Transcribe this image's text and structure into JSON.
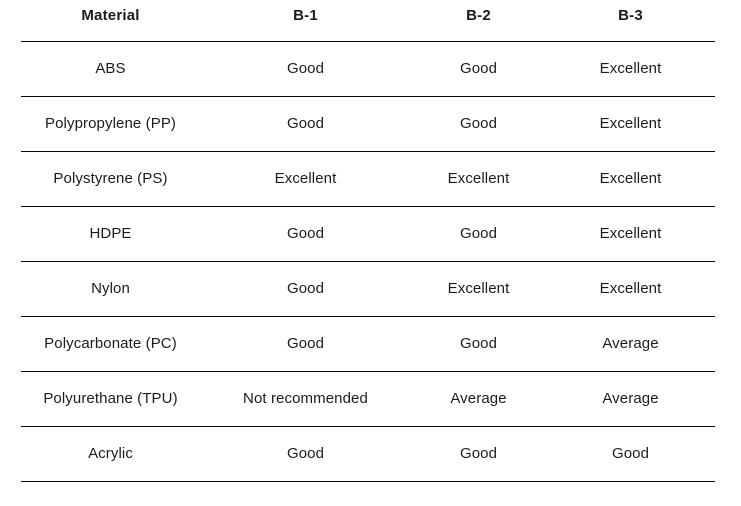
{
  "colors": {
    "background": "#ffffff",
    "text": "#1c1c1c",
    "rule": "#0b0b0b"
  },
  "table": {
    "headers": [
      "Material",
      "B-1",
      "B-2",
      "B-3"
    ],
    "rows": [
      [
        "ABS",
        "Good",
        "Good",
        "Excellent"
      ],
      [
        "Polypropylene (PP)",
        "Good",
        "Good",
        "Excellent"
      ],
      [
        "Polystyrene (PS)",
        "Excellent",
        "Excellent",
        "Excellent"
      ],
      [
        "HDPE",
        "Good",
        "Good",
        "Excellent"
      ],
      [
        "Nylon",
        "Good",
        "Excellent",
        "Excellent"
      ],
      [
        "Polycarbonate (PC)",
        "Good",
        "Good",
        "Average"
      ],
      [
        "Polyurethane (TPU)",
        "Not recommended",
        "Average",
        "Average"
      ],
      [
        "Acrylic",
        "Good",
        "Good",
        "Good"
      ]
    ]
  }
}
